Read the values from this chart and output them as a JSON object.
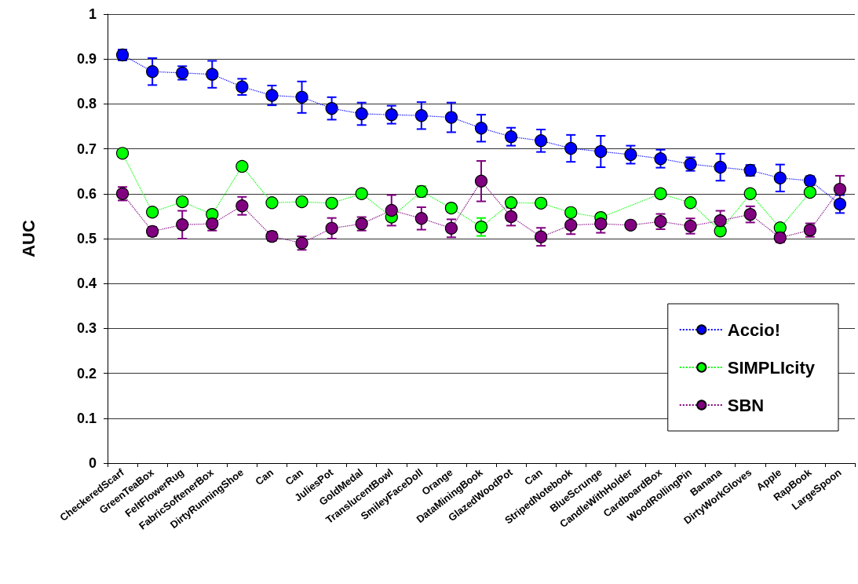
{
  "chart_data": {
    "type": "line",
    "ylabel": "AUC",
    "categories": [
      "CheckeredScarf",
      "GreenTeaBox",
      "FeltFlowerRug",
      "FabricSoftenerBox",
      "DirtyRunningShoe",
      "Can",
      "Can",
      "JuliesPot",
      "GoldMedal",
      "TranslucentBowl",
      "SmileyFaceDoll",
      "Orange",
      "DataMiningBook",
      "GlazedWoodPot",
      "Can",
      "StripedNotebook",
      "BlueScrunge",
      "CandleWithHolder",
      "CardboardBox",
      "WoodRollingPin",
      "Banana",
      "DirtyWorkGloves",
      "Apple",
      "RapBook",
      "LargeSpoon"
    ],
    "series": [
      {
        "name": "Accio!",
        "color": "#0000ff",
        "values": [
          0.909,
          0.872,
          0.869,
          0.866,
          0.838,
          0.819,
          0.815,
          0.79,
          0.778,
          0.776,
          0.774,
          0.77,
          0.746,
          0.727,
          0.718,
          0.701,
          0.694,
          0.687,
          0.678,
          0.666,
          0.659,
          0.652,
          0.635,
          0.629,
          0.577
        ],
        "errors": [
          0.012,
          0.03,
          0.015,
          0.03,
          0.018,
          0.022,
          0.035,
          0.025,
          0.025,
          0.02,
          0.03,
          0.033,
          0.03,
          0.02,
          0.025,
          0.03,
          0.035,
          0.02,
          0.02,
          0.015,
          0.03,
          0.012,
          0.03,
          0.01,
          0.02
        ]
      },
      {
        "name": "SIMPLIcity",
        "color": "#00ff00",
        "values": [
          0.69,
          0.559,
          0.582,
          0.554,
          0.661,
          0.58,
          0.582,
          0.579,
          0.6,
          0.548,
          0.605,
          0.568,
          0.526,
          0.58,
          0.579,
          0.558,
          0.547,
          null,
          0.6,
          0.58,
          0.517,
          0.6,
          0.524,
          0.603,
          null
        ],
        "errors": [
          null,
          null,
          null,
          null,
          null,
          null,
          null,
          null,
          null,
          null,
          0.012,
          null,
          0.02,
          null,
          null,
          null,
          null,
          null,
          null,
          null,
          null,
          null,
          null,
          null,
          null
        ]
      },
      {
        "name": "SBN",
        "color": "#800080",
        "values": [
          0.6,
          0.516,
          0.531,
          0.533,
          0.573,
          0.505,
          0.49,
          0.523,
          0.533,
          0.563,
          0.545,
          0.523,
          0.628,
          0.549,
          0.504,
          0.53,
          0.533,
          0.53,
          0.538,
          0.528,
          0.54,
          0.554,
          0.502,
          0.519,
          0.61
        ],
        "errors": [
          0.015,
          0.01,
          0.031,
          0.015,
          0.02,
          0.01,
          0.015,
          0.023,
          0.015,
          0.034,
          0.025,
          0.02,
          0.045,
          0.02,
          0.02,
          0.02,
          0.02,
          null,
          0.017,
          0.017,
          0.022,
          0.018,
          0.01,
          0.015,
          0.03
        ]
      }
    ],
    "ylim": [
      0,
      1
    ],
    "yticks": [
      0,
      0.1,
      0.2,
      0.3,
      0.4,
      0.5,
      0.6,
      0.7,
      0.8,
      0.9,
      1
    ],
    "grid": "y",
    "legend": "bottom right",
    "marker": "circle",
    "line_style": "dotted"
  }
}
